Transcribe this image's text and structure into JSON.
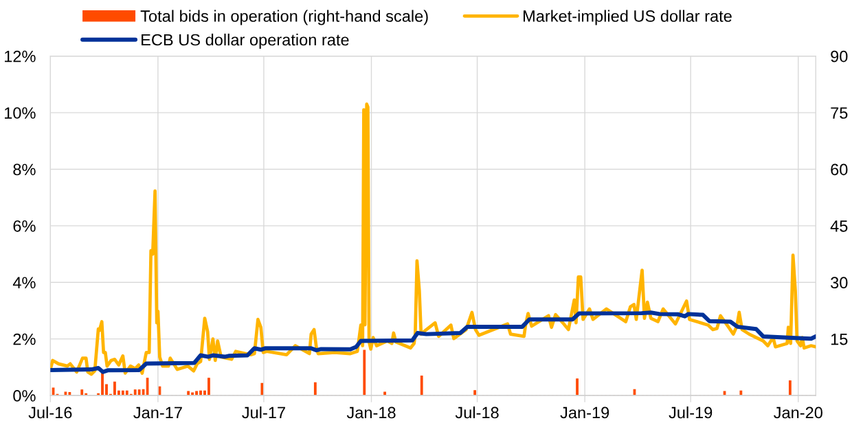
{
  "chart_data": {
    "type": "line",
    "xlim": [
      "2016-07-01",
      "2020-01-31"
    ],
    "xticks": [
      {
        "value": "2016-07-01",
        "label": "Jul-16"
      },
      {
        "value": "2017-01-01",
        "label": "Jan-17"
      },
      {
        "value": "2017-07-01",
        "label": "Jul-17"
      },
      {
        "value": "2018-01-01",
        "label": "Jan-18"
      },
      {
        "value": "2018-07-01",
        "label": "Jul-18"
      },
      {
        "value": "2019-01-01",
        "label": "Jan-19"
      },
      {
        "value": "2019-07-01",
        "label": "Jul-19"
      },
      {
        "value": "2020-01-01",
        "label": "Jan-20"
      }
    ],
    "ylim": [
      0,
      12
    ],
    "yticks": [
      {
        "value": 0,
        "label": "0%"
      },
      {
        "value": 2,
        "label": "2%"
      },
      {
        "value": 4,
        "label": "4%"
      },
      {
        "value": 6,
        "label": "6%"
      },
      {
        "value": 8,
        "label": "8%"
      },
      {
        "value": 10,
        "label": "10%"
      },
      {
        "value": 12,
        "label": "12%"
      }
    ],
    "y2lim": [
      0,
      90
    ],
    "y2ticks": [
      15,
      30,
      45,
      60,
      75,
      90
    ],
    "grid": true,
    "legend": "top",
    "line_style": "solid",
    "series": [
      {
        "name": "Total bids in operation (right-hand scale)",
        "type": "bar",
        "axis": "y2",
        "color": "#ff4b00",
        "x": [
          "2016-07-06",
          "2016-07-13",
          "2016-07-20",
          "2016-07-27",
          "2016-08-03",
          "2016-08-10",
          "2016-08-17",
          "2016-08-24",
          "2016-08-31",
          "2016-09-07",
          "2016-09-14",
          "2016-09-21",
          "2016-09-28",
          "2016-10-05",
          "2016-10-12",
          "2016-10-19",
          "2016-10-26",
          "2016-11-02",
          "2016-11-09",
          "2016-11-16",
          "2016-11-23",
          "2016-11-30",
          "2016-12-07",
          "2016-12-14",
          "2016-12-21",
          "2016-12-28",
          "2017-01-04",
          "2017-01-11",
          "2017-01-18",
          "2017-01-25",
          "2017-02-01",
          "2017-02-08",
          "2017-02-15",
          "2017-02-22",
          "2017-03-01",
          "2017-03-08",
          "2017-03-15",
          "2017-03-22",
          "2017-03-29",
          "2017-04-05",
          "2017-04-12",
          "2017-04-19",
          "2017-04-26",
          "2017-05-03",
          "2017-05-10",
          "2017-05-17",
          "2017-05-24",
          "2017-05-31",
          "2017-06-07",
          "2017-06-14",
          "2017-06-21",
          "2017-06-28",
          "2017-07-05",
          "2017-07-12",
          "2017-07-19",
          "2017-07-26",
          "2017-08-02",
          "2017-08-09",
          "2017-08-16",
          "2017-08-23",
          "2017-08-30",
          "2017-09-06",
          "2017-09-13",
          "2017-09-20",
          "2017-09-27",
          "2017-10-04",
          "2017-10-11",
          "2017-10-18",
          "2017-10-25",
          "2017-11-01",
          "2017-11-08",
          "2017-11-15",
          "2017-11-22",
          "2017-11-29",
          "2017-12-06",
          "2017-12-13",
          "2017-12-20",
          "2017-12-27",
          "2018-01-03",
          "2018-01-10",
          "2018-01-17",
          "2018-01-24",
          "2018-01-31",
          "2018-02-07",
          "2018-02-14",
          "2018-02-21",
          "2018-02-28",
          "2018-03-07",
          "2018-03-14",
          "2018-03-21",
          "2018-03-28",
          "2018-04-04",
          "2018-04-11",
          "2018-04-18",
          "2018-04-25",
          "2018-05-02",
          "2018-05-09",
          "2018-05-16",
          "2018-05-23",
          "2018-05-30",
          "2018-06-06",
          "2018-06-13",
          "2018-06-20",
          "2018-06-27",
          "2018-07-04",
          "2018-07-11",
          "2018-07-18",
          "2018-07-25",
          "2018-08-01",
          "2018-08-08",
          "2018-08-15",
          "2018-08-22",
          "2018-08-29",
          "2018-09-05",
          "2018-09-12",
          "2018-09-19",
          "2018-09-26",
          "2018-10-03",
          "2018-10-10",
          "2018-10-17",
          "2018-10-24",
          "2018-10-31",
          "2018-11-07",
          "2018-11-14",
          "2018-11-21",
          "2018-11-28",
          "2018-12-05",
          "2018-12-12",
          "2018-12-19",
          "2018-12-26",
          "2019-01-02",
          "2019-01-09",
          "2019-01-16",
          "2019-01-23",
          "2019-01-30",
          "2019-02-06",
          "2019-02-13",
          "2019-02-20",
          "2019-02-27",
          "2019-03-06",
          "2019-03-13",
          "2019-03-20",
          "2019-03-27",
          "2019-04-03",
          "2019-04-10",
          "2019-04-17",
          "2019-04-24",
          "2019-05-01",
          "2019-05-08",
          "2019-05-15",
          "2019-05-22",
          "2019-05-29",
          "2019-06-05",
          "2019-06-12",
          "2019-06-19",
          "2019-06-26",
          "2019-07-03",
          "2019-07-10",
          "2019-07-17",
          "2019-07-24",
          "2019-07-31",
          "2019-08-07",
          "2019-08-14",
          "2019-08-21",
          "2019-08-28",
          "2019-09-04",
          "2019-09-11",
          "2019-09-18",
          "2019-09-25",
          "2019-10-02",
          "2019-10-09",
          "2019-10-16",
          "2019-10-23",
          "2019-10-30",
          "2019-11-06",
          "2019-11-13",
          "2019-11-20",
          "2019-11-27",
          "2019-12-04",
          "2019-12-11",
          "2019-12-18",
          "2019-12-25",
          "2020-01-01",
          "2020-01-08",
          "2020-01-15",
          "2020-01-22",
          "2020-01-29"
        ],
        "values": [
          2.0,
          0.3,
          0,
          0.9,
          0.8,
          0,
          0,
          1.5,
          0.5,
          0,
          null,
          0.5,
          6.3,
          2.9,
          0.3,
          3.6,
          1.2,
          1.2,
          1.2,
          0.3,
          1.5,
          1.5,
          1.6,
          4.6,
          null,
          null,
          2.3,
          0,
          0,
          0,
          0,
          0,
          0,
          1.1,
          0.7,
          1.1,
          1.2,
          1.2,
          4.6,
          0,
          0,
          0,
          0,
          0,
          0,
          0,
          0,
          0,
          0,
          0,
          0,
          3.2,
          0,
          0,
          0,
          0,
          0,
          0,
          0,
          0,
          0,
          0,
          0,
          0,
          3.4,
          0,
          0,
          0,
          0,
          0,
          0,
          0,
          0,
          0,
          0,
          0,
          12,
          null,
          null,
          0,
          0,
          0.9,
          0,
          0,
          0,
          0,
          0,
          0,
          0,
          0,
          5.2,
          0,
          0,
          0,
          0,
          0,
          0,
          0,
          0,
          0,
          0,
          0,
          0,
          1.3,
          0,
          0,
          0,
          0,
          0,
          0,
          null,
          0,
          0,
          0,
          0,
          0,
          0,
          0,
          0,
          0,
          0,
          0,
          0,
          0,
          0,
          0,
          0,
          0,
          4.4,
          null,
          0,
          0,
          0,
          0,
          0,
          0,
          0,
          0,
          0,
          0,
          0,
          0,
          1.6,
          0,
          0,
          0,
          0,
          0,
          0,
          0,
          0,
          0,
          0,
          0,
          0,
          0,
          0,
          0,
          0,
          0,
          0,
          0,
          0,
          0,
          1.1,
          0,
          0,
          0,
          1.2,
          0,
          0,
          0,
          0,
          0,
          0,
          0,
          0,
          0,
          0,
          0,
          3.9,
          null,
          null,
          0,
          0,
          0,
          0
        ]
      },
      {
        "name": "Market-implied US dollar rate",
        "color": "#ffb400",
        "x": [
          "2016-07-02",
          "2016-07-05",
          "2016-07-15",
          "2016-07-30",
          "2016-08-04",
          "2016-08-15",
          "2016-08-25",
          "2016-08-31",
          "2016-09-03",
          "2016-09-09",
          "2016-09-15",
          "2016-09-21",
          "2016-09-23",
          "2016-09-27",
          "2016-09-30",
          "2016-10-03",
          "2016-10-06",
          "2016-10-13",
          "2016-10-19",
          "2016-10-26",
          "2016-11-02",
          "2016-11-06",
          "2016-11-15",
          "2016-11-23",
          "2016-11-29",
          "2016-12-05",
          "2016-12-12",
          "2016-12-17",
          "2016-12-20",
          "2016-12-23",
          "2016-12-27",
          "2016-12-30",
          "2017-01-01",
          "2017-01-04",
          "2017-01-09",
          "2017-01-19",
          "2017-01-22",
          "2017-02-03",
          "2017-02-21",
          "2017-03-03",
          "2017-03-09",
          "2017-03-15",
          "2017-03-22",
          "2017-03-27",
          "2017-03-30",
          "2017-04-05",
          "2017-04-09",
          "2017-04-13",
          "2017-04-19",
          "2017-05-07",
          "2017-05-14",
          "2017-06-09",
          "2017-06-15",
          "2017-06-21",
          "2017-06-26",
          "2017-06-30",
          "2017-07-06",
          "2017-08-09",
          "2017-08-24",
          "2017-09-17",
          "2017-09-20",
          "2017-09-25",
          "2017-09-29",
          "2017-10-02",
          "2017-10-30",
          "2017-11-26",
          "2017-12-08",
          "2017-12-14",
          "2017-12-17",
          "2017-12-19",
          "2017-12-21",
          "2017-12-24",
          "2017-12-26",
          "2017-12-28",
          "2017-12-31",
          "2018-01-04",
          "2018-01-10",
          "2018-01-28",
          "2018-02-05",
          "2018-02-08",
          "2018-02-12",
          "2018-03-09",
          "2018-03-15",
          "2018-03-17",
          "2018-03-20",
          "2018-03-24",
          "2018-03-27",
          "2018-04-05",
          "2018-04-20",
          "2018-04-26",
          "2018-05-17",
          "2018-05-22",
          "2018-06-12",
          "2018-06-22",
          "2018-06-28",
          "2018-07-04",
          "2018-08-22",
          "2018-08-27",
          "2018-09-19",
          "2018-09-22",
          "2018-09-26",
          "2018-10-02",
          "2018-10-31",
          "2018-11-05",
          "2018-11-12",
          "2018-11-26",
          "2018-12-04",
          "2018-12-14",
          "2018-12-17",
          "2018-12-21",
          "2018-12-25",
          "2018-12-29",
          "2019-01-09",
          "2019-01-15",
          "2019-02-07",
          "2019-03-12",
          "2019-03-20",
          "2019-03-26",
          "2019-03-30",
          "2019-04-09",
          "2019-04-13",
          "2019-04-18",
          "2019-04-24",
          "2019-05-06",
          "2019-05-15",
          "2019-06-05",
          "2019-06-24",
          "2019-06-29",
          "2019-07-31",
          "2019-08-08",
          "2019-08-15",
          "2019-08-21",
          "2019-09-04",
          "2019-09-12",
          "2019-09-18",
          "2019-09-22",
          "2019-09-27",
          "2019-10-09",
          "2019-11-02",
          "2019-11-10",
          "2019-11-19",
          "2019-11-23",
          "2019-12-13",
          "2019-12-15",
          "2019-12-19",
          "2019-12-23",
          "2019-12-27",
          "2019-12-30",
          "2020-01-05",
          "2020-01-08",
          "2020-01-11",
          "2020-01-23",
          "2020-01-31"
        ],
        "values": [
          1.0,
          1.24,
          1.12,
          1.04,
          1.12,
          0.83,
          1.32,
          1.32,
          0.83,
          0.75,
          0.87,
          2.35,
          2.3,
          2.61,
          1.52,
          1.52,
          1.04,
          1.24,
          1.28,
          1.08,
          1.4,
          0.79,
          1.04,
          0.95,
          1.08,
          0.79,
          1.52,
          1.52,
          5.12,
          5.0,
          7.23,
          2.57,
          2.98,
          1.36,
          1.04,
          1.04,
          1.32,
          0.92,
          1.04,
          0.87,
          1.12,
          1.2,
          2.73,
          2.25,
          1.28,
          2.0,
          1.24,
          1.93,
          1.36,
          1.28,
          1.56,
          1.44,
          1.48,
          2.69,
          2.41,
          1.52,
          1.56,
          1.44,
          1.76,
          1.48,
          2.17,
          2.33,
          1.68,
          1.48,
          1.52,
          1.48,
          1.56,
          2.49,
          1.76,
          10.1,
          2.5,
          10.3,
          10.2,
          1.9,
          1.64,
          2.05,
          1.76,
          1.93,
          1.84,
          2.21,
          1.89,
          1.68,
          1.84,
          2.17,
          4.76,
          3.71,
          2.17,
          2.33,
          2.57,
          2.09,
          2.49,
          2.01,
          2.33,
          2.94,
          2.33,
          2.13,
          2.53,
          2.17,
          2.09,
          2.53,
          2.9,
          2.45,
          2.82,
          2.41,
          2.86,
          2.53,
          2.33,
          3.38,
          2.57,
          4.19,
          4.19,
          2.69,
          3.06,
          2.69,
          3.06,
          2.61,
          3.14,
          3.22,
          2.69,
          4.43,
          2.73,
          3.3,
          2.73,
          2.61,
          3.06,
          2.53,
          3.34,
          2.69,
          2.49,
          2.33,
          2.37,
          2.82,
          2.41,
          2.17,
          2.45,
          2.94,
          2.33,
          2.17,
          1.93,
          1.76,
          2.05,
          1.72,
          1.84,
          2.41,
          1.84,
          4.96,
          3.71,
          1.93,
          1.76,
          2.05,
          1.68,
          1.76,
          1.72
        ]
      },
      {
        "name": "ECB US dollar operation rate",
        "color": "#003299",
        "x": [
          "2016-07-01",
          "2016-09-09",
          "2016-09-21",
          "2016-09-29",
          "2016-10-07",
          "2016-11-30",
          "2016-12-12",
          "2017-03-04",
          "2017-03-15",
          "2017-03-28",
          "2017-04-05",
          "2017-04-25",
          "2017-05-02",
          "2017-06-03",
          "2017-06-15",
          "2017-06-26",
          "2017-07-04",
          "2017-09-20",
          "2017-09-29",
          "2017-10-07",
          "2017-11-26",
          "2017-12-06",
          "2017-12-14",
          "2018-03-12",
          "2018-03-21",
          "2018-04-05",
          "2018-06-02",
          "2018-06-14",
          "2018-09-16",
          "2018-09-28",
          "2018-12-11",
          "2018-12-22",
          "2019-04-08",
          "2019-04-24",
          "2019-05-09",
          "2019-06-10",
          "2019-06-21",
          "2019-06-27",
          "2019-07-22",
          "2019-08-02",
          "2019-09-07",
          "2019-09-19",
          "2019-10-21",
          "2019-11-02",
          "2020-01-08",
          "2020-01-23",
          "2020-01-31"
        ],
        "values": [
          0.9,
          0.92,
          0.97,
          0.83,
          0.89,
          0.9,
          1.13,
          1.15,
          1.42,
          1.37,
          1.42,
          1.37,
          1.4,
          1.42,
          1.67,
          1.62,
          1.67,
          1.67,
          1.6,
          1.64,
          1.63,
          1.72,
          1.93,
          1.95,
          2.21,
          2.17,
          2.21,
          2.43,
          2.43,
          2.69,
          2.69,
          2.9,
          2.91,
          2.93,
          2.88,
          2.87,
          2.8,
          2.88,
          2.85,
          2.63,
          2.61,
          2.43,
          2.35,
          2.09,
          2.02,
          2.01,
          2.09
        ]
      }
    ]
  }
}
